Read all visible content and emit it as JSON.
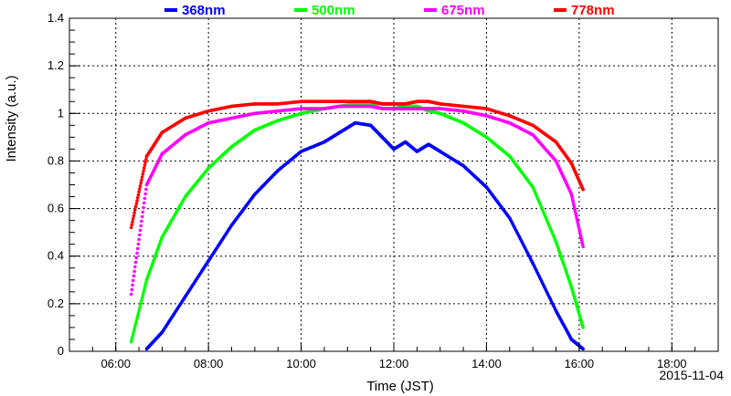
{
  "chart_data": {
    "type": "scatter",
    "title": "",
    "xlabel": "Time (JST)",
    "ylabel": "Intensity (a.u.)",
    "date_label": "2015-11-04",
    "xlim": [
      "05:00",
      "19:00"
    ],
    "ylim": [
      0,
      1.4
    ],
    "grid": true,
    "legend_position": "top",
    "x_ticks": [
      "06:00",
      "08:00",
      "10:00",
      "12:00",
      "14:00",
      "16:00",
      "18:00"
    ],
    "y_ticks": [
      "0",
      "0.2",
      "0.4",
      "0.6",
      "0.8",
      "1",
      "1.2",
      "1.4"
    ],
    "x": [
      "06:20",
      "06:40",
      "07:00",
      "07:30",
      "08:00",
      "08:30",
      "09:00",
      "09:30",
      "10:00",
      "10:30",
      "10:50",
      "11:10",
      "11:30",
      "11:45",
      "12:00",
      "12:15",
      "12:30",
      "12:45",
      "13:00",
      "13:30",
      "14:00",
      "14:30",
      "15:00",
      "15:30",
      "15:50",
      "16:05"
    ],
    "series": [
      {
        "name": "368nm",
        "color": "#0000ff",
        "values": [
          null,
          0.01,
          0.08,
          0.23,
          0.38,
          0.53,
          0.66,
          0.76,
          0.84,
          0.88,
          0.92,
          0.96,
          0.95,
          0.9,
          0.85,
          0.88,
          0.84,
          0.87,
          0.84,
          0.78,
          0.69,
          0.56,
          0.37,
          0.17,
          0.05,
          0.01
        ]
      },
      {
        "name": "500nm",
        "color": "#00ff00",
        "values": [
          0.04,
          0.3,
          0.48,
          0.65,
          0.77,
          0.86,
          0.93,
          0.97,
          1.0,
          1.02,
          1.03,
          1.04,
          1.04,
          1.02,
          1.02,
          1.03,
          1.03,
          1.01,
          1.0,
          0.96,
          0.9,
          0.82,
          0.69,
          0.46,
          0.27,
          0.1
        ]
      },
      {
        "name": "675nm",
        "color": "#ff00ff",
        "values": [
          0.24,
          0.7,
          0.83,
          0.91,
          0.96,
          0.98,
          1.0,
          1.01,
          1.02,
          1.02,
          1.03,
          1.03,
          1.03,
          1.02,
          1.02,
          1.02,
          1.02,
          1.02,
          1.02,
          1.01,
          0.99,
          0.96,
          0.91,
          0.8,
          0.66,
          0.44
        ]
      },
      {
        "name": "778nm",
        "color": "#ff0000",
        "values": [
          0.52,
          0.82,
          0.92,
          0.98,
          1.01,
          1.03,
          1.04,
          1.04,
          1.05,
          1.05,
          1.05,
          1.05,
          1.05,
          1.04,
          1.04,
          1.04,
          1.05,
          1.05,
          1.04,
          1.03,
          1.02,
          0.99,
          0.95,
          0.88,
          0.79,
          0.68
        ]
      }
    ]
  }
}
